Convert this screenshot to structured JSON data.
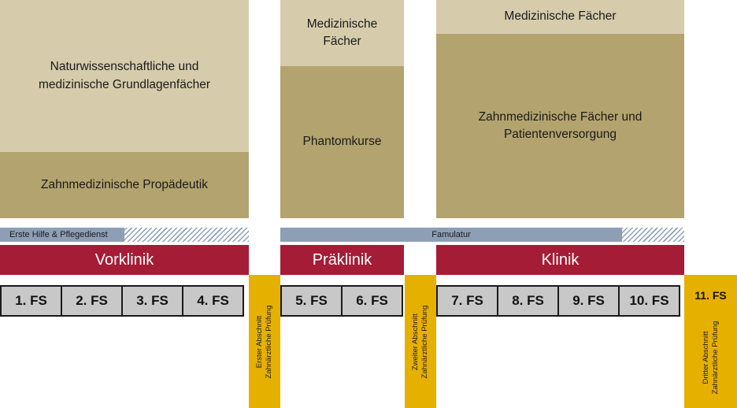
{
  "blocks": {
    "vorklinik_subjects": {
      "line1": "Naturwissenschaftliche und",
      "line2": "medizinische Grundlagenfächer"
    },
    "propaedeutik": "Zahnmedizinische Propädeutik",
    "praeklinik_subjects": {
      "line1": "Medizinische",
      "line2": "Fächer"
    },
    "phantomkurse": "Phantomkurse",
    "klinik_subjects": "Medizinische Fächer",
    "patientenversorgung": {
      "line1": "Zahnmedizinische Fächer und",
      "line2": "Patientenversorgung"
    }
  },
  "bars": {
    "erste_hilfe": "Erste Hilfe & Pflegedienst",
    "famulatur": "Famulatur"
  },
  "phases": {
    "vorklinik": "Vorklinik",
    "praeklinik": "Präklinik",
    "klinik": "Klinik"
  },
  "semesters": [
    "1. FS",
    "2. FS",
    "3. FS",
    "4. FS",
    "5. FS",
    "6. FS",
    "7. FS",
    "8. FS",
    "9. FS",
    "10. FS"
  ],
  "exams": {
    "first": {
      "line1": "Erster Abschnitt",
      "line2": "Zahnärztliche Prüfung"
    },
    "second": {
      "line1": "Zweiter Abschnitt",
      "line2": "Zahnärztliche Prüfung"
    },
    "third": {
      "label": "11. FS",
      "line1": "Dritter Abschnitt",
      "line2": "Zahnärztliche Prüfung"
    }
  },
  "colors": {
    "light_block": "#d6ccac",
    "dark_block": "#b3a36e",
    "phase": "#a51c36",
    "bar": "#8e9fb5",
    "exam": "#e6b000",
    "semester": "#c8c8c8"
  }
}
